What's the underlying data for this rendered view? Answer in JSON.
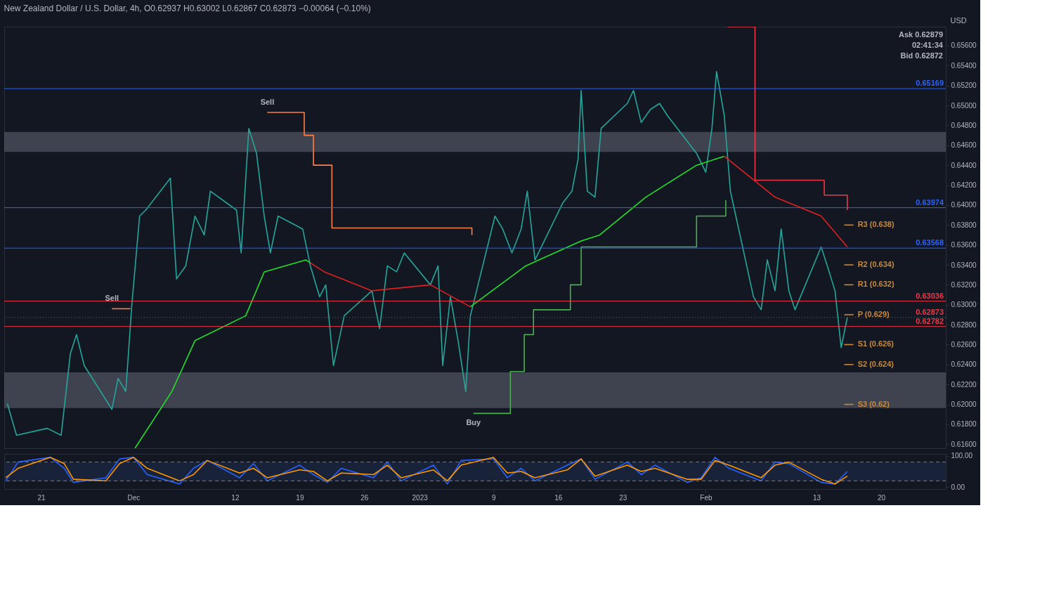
{
  "chart_data": [
    {
      "type": "line",
      "title": "New Zealand Dollar / U.S. Dollar, 4h, O0.62937 H0.63002 L0.62867 C0.62873 −0.00064 (−0.10%)",
      "ylabel": "USD",
      "xlim": [
        "2022-11-17",
        "2023-02-27"
      ],
      "ylim": [
        0.6156,
        0.6579
      ],
      "yticks": [
        {
          "value": 0.616,
          "label": "0.61600"
        },
        {
          "value": 0.618,
          "label": "0.61800"
        },
        {
          "value": 0.62,
          "label": "0.62000"
        },
        {
          "value": 0.622,
          "label": "0.62200"
        },
        {
          "value": 0.624,
          "label": "0.62400"
        },
        {
          "value": 0.626,
          "label": "0.62600"
        },
        {
          "value": 0.628,
          "label": "0.62800"
        },
        {
          "value": 0.63,
          "label": "0.63000"
        },
        {
          "value": 0.632,
          "label": "0.63200"
        },
        {
          "value": 0.634,
          "label": "0.63400"
        },
        {
          "value": 0.636,
          "label": "0.63600"
        },
        {
          "value": 0.638,
          "label": "0.63800"
        },
        {
          "value": 0.64,
          "label": "0.64000"
        },
        {
          "value": 0.642,
          "label": "0.64200"
        },
        {
          "value": 0.644,
          "label": "0.64400"
        },
        {
          "value": 0.646,
          "label": "0.64600"
        },
        {
          "value": 0.648,
          "label": "0.64800"
        },
        {
          "value": 0.65,
          "label": "0.65000"
        },
        {
          "value": 0.652,
          "label": "0.65200"
        },
        {
          "value": 0.654,
          "label": "0.65400"
        },
        {
          "value": 0.656,
          "label": "0.65600"
        }
      ],
      "tick_labels": "y",
      "grid": false,
      "bands": [
        {
          "axis": "y",
          "from": 0.64533,
          "to": 0.64734,
          "color": "#5d6170"
        },
        {
          "axis": "y",
          "from": 0.61963,
          "to": 0.62322,
          "color": "#5d6170"
        }
      ],
      "series": [
        {
          "color": "#26a69a",
          "x": [
            "2022-11-17T08:00",
            "2022-11-18T08:00",
            "2022-11-21T16:00",
            "2022-11-23T04:00",
            "2022-11-24T04:00",
            "2022-11-24T20:00",
            "2022-11-25T16:00",
            "2022-11-28T16:00",
            "2022-11-29T08:00",
            "2022-11-30T04:00",
            "2022-11-30T20:00",
            "2022-12-01T16:00",
            "2022-12-02T08:00",
            "2022-12-05T00:00",
            "2022-12-05T16:00",
            "2022-12-06T16:00",
            "2022-12-07T16:00",
            "2022-12-08T16:00",
            "2022-12-09T08:00",
            "2022-12-12T04:00",
            "2022-12-12T16:00",
            "2022-12-13T12:00",
            "2022-12-14T08:00",
            "2022-12-15T04:00",
            "2022-12-15T20:00",
            "2022-12-16T16:00",
            "2022-12-19T08:00",
            "2022-12-20T04:00",
            "2022-12-21T04:00",
            "2022-12-21T20:00",
            "2022-12-22T16:00",
            "2022-12-23T20:00",
            "2022-12-26T20:00",
            "2022-12-27T16:00",
            "2022-12-28T12:00",
            "2022-12-29T12:00",
            "2022-12-30T08:00",
            "2023-01-02T04:00",
            "2023-01-03T00:00",
            "2023-01-03T12:00",
            "2023-01-04T08:00",
            "2023-01-05T04:00",
            "2023-01-06T00:00",
            "2023-01-06T12:00",
            "2023-01-09T04:00",
            "2023-01-10T00:00",
            "2023-01-11T00:00",
            "2023-01-12T00:00",
            "2023-01-12T16:00",
            "2023-01-13T12:00",
            "2023-01-16T12:00",
            "2023-01-17T12:00",
            "2023-01-18T04:00",
            "2023-01-18T12:00",
            "2023-01-19T04:00",
            "2023-01-20T00:00",
            "2023-01-20T16:00",
            "2023-01-23T12:00",
            "2023-01-24T04:00",
            "2023-01-25T00:00",
            "2023-01-26T00:00",
            "2023-01-27T00:00",
            "2023-01-27T20:00",
            "2023-01-31T00:00",
            "2023-02-01T00:00",
            "2023-02-01T16:00",
            "2023-02-02T04:00",
            "2023-02-03T00:00",
            "2023-02-03T16:00",
            "2023-02-06T04:00",
            "2023-02-07T00:00",
            "2023-02-07T16:00",
            "2023-02-08T12:00",
            "2023-02-09T04:00",
            "2023-02-10T00:00",
            "2023-02-10T16:00",
            "2023-02-13T12:00",
            "2023-02-14T04:00",
            "2023-02-15T00:00",
            "2023-02-15T16:00",
            "2023-02-16T08:00"
          ],
          "values": [
            0.6201,
            0.6169,
            0.6176,
            0.6169,
            0.6251,
            0.627,
            0.6239,
            0.6195,
            0.6226,
            0.6213,
            0.6301,
            0.6389,
            0.6395,
            0.6427,
            0.6326,
            0.6339,
            0.6389,
            0.637,
            0.6414,
            0.6395,
            0.6352,
            0.6477,
            0.6452,
            0.6389,
            0.6352,
            0.6389,
            0.6376,
            0.6339,
            0.6308,
            0.632,
            0.6239,
            0.6289,
            0.6314,
            0.6276,
            0.6339,
            0.6333,
            0.6352,
            0.632,
            0.6339,
            0.6239,
            0.6308,
            0.6264,
            0.6213,
            0.6289,
            0.6389,
            0.6376,
            0.6352,
            0.6376,
            0.6414,
            0.6345,
            0.6402,
            0.6414,
            0.6446,
            0.6515,
            0.6414,
            0.6408,
            0.6477,
            0.6502,
            0.6515,
            0.6483,
            0.6496,
            0.6502,
            0.649,
            0.6452,
            0.6433,
            0.6477,
            0.6534,
            0.649,
            0.6414,
            0.6308,
            0.6295,
            0.6345,
            0.6314,
            0.6376,
            0.6314,
            0.6295,
            0.6358,
            0.6339,
            0.6314,
            0.6257,
            0.62873
          ]
        },
        {
          "color": "#22e02a",
          "x": [
            "2022-12-01T04:00",
            "2022-12-05T04:00",
            "2022-12-07T16:00",
            "2022-12-13T04:00",
            "2022-12-15T04:00",
            "2022-12-19T16:00",
            "2022-12-20T04:00"
          ],
          "values": [
            0.6156,
            0.6213,
            0.6264,
            0.6289,
            0.6333,
            0.6345,
            0.6342
          ]
        },
        {
          "color": "#e02020",
          "x": [
            "2022-12-20T04:00",
            "2022-12-21T16:00",
            "2022-12-26T20:00",
            "2023-01-02T04:00",
            "2023-01-06T12:00"
          ],
          "values": [
            0.6342,
            0.6333,
            0.6314,
            0.632,
            0.6298
          ]
        },
        {
          "color": "#22e02a",
          "x": [
            "2023-01-06T12:00",
            "2023-01-12T12:00",
            "2023-01-18T12:00",
            "2023-01-20T12:00",
            "2023-01-25T12:00",
            "2023-01-31T00:00",
            "2023-02-03T00:00"
          ],
          "values": [
            0.6298,
            0.6339,
            0.6364,
            0.637,
            0.6408,
            0.644,
            0.6449
          ]
        },
        {
          "color": "#e02020",
          "x": [
            "2023-02-03T00:00",
            "2023-02-08T12:00",
            "2023-02-13T12:00",
            "2023-02-16T08:00"
          ],
          "values": [
            0.6449,
            0.6408,
            0.6389,
            0.6358
          ]
        },
        {
          "type": "step",
          "color": "#ff7f45",
          "x": [
            "2022-11-28T16:00",
            "2022-11-30T16:00"
          ],
          "values": [
            0.6296,
            0.6296
          ]
        },
        {
          "type": "step",
          "color": "#ff7f45",
          "x": [
            "2022-12-15T12:00",
            "2022-12-19T12:00",
            "2022-12-20T12:00",
            "2022-12-22T12:00",
            "2023-01-06T16:00"
          ],
          "values": [
            0.6493,
            0.647,
            0.644,
            0.6377,
            0.637
          ]
        },
        {
          "type": "step",
          "color": "#4caf50",
          "x": [
            "2023-01-06T20:00",
            "2023-01-10T20:00",
            "2023-01-12T08:00",
            "2023-01-13T08:00",
            "2023-01-17T08:00",
            "2023-01-18T12:00",
            "2023-01-31T00:00",
            "2023-02-03T04:00"
          ],
          "values": [
            0.6191,
            0.6233,
            0.627,
            0.6295,
            0.632,
            0.6358,
            0.6389,
            0.6405
          ]
        },
        {
          "type": "step",
          "color": "#f23645",
          "x": [
            "2023-02-03T08:00",
            "2023-02-06T08:00",
            "2023-02-13T20:00",
            "2023-02-16T08:00"
          ],
          "values": [
            0.6579,
            0.6425,
            0.641,
            0.6395
          ]
        },
        {
          "name": "R3 (0.638)",
          "color": "#c8883a",
          "x": [
            "2023-02-16T00:00",
            "2023-02-17T00:00"
          ],
          "values": [
            0.638,
            0.638
          ]
        },
        {
          "name": "R2 (0.634)",
          "color": "#c8883a",
          "x": [
            "2023-02-16T00:00",
            "2023-02-17T00:00"
          ],
          "values": [
            0.634,
            0.634
          ]
        },
        {
          "name": "R1 (0.632)",
          "color": "#c8883a",
          "x": [
            "2023-02-16T00:00",
            "2023-02-17T00:00"
          ],
          "values": [
            0.632,
            0.632
          ]
        },
        {
          "name": "P (0.629)",
          "color": "#c8883a",
          "x": [
            "2023-02-16T00:00",
            "2023-02-17T00:00"
          ],
          "values": [
            0.629,
            0.629
          ]
        },
        {
          "name": "S1 (0.626)",
          "color": "#c8883a",
          "x": [
            "2023-02-16T00:00",
            "2023-02-17T00:00"
          ],
          "values": [
            0.626,
            0.626
          ]
        },
        {
          "name": "S2 (0.624)",
          "color": "#c8883a",
          "x": [
            "2023-02-16T00:00",
            "2023-02-17T00:00"
          ],
          "values": [
            0.624,
            0.624
          ]
        },
        {
          "name": "S3 (0.62)",
          "color": "#c8883a",
          "x": [
            "2023-02-16T00:00",
            "2023-02-17T00:00"
          ],
          "values": [
            0.62,
            0.62
          ]
        }
      ],
      "ref_lines": [
        {
          "axis": "y",
          "value": 0.65169,
          "label": "0.65169",
          "color": "#2962ff"
        },
        {
          "axis": "y",
          "value": 0.63974,
          "label": "0.63974",
          "color": "#2962ff"
        },
        {
          "axis": "y",
          "value": 0.63568,
          "label": "0.63568",
          "color": "#2962ff"
        },
        {
          "axis": "y",
          "value": 0.63036,
          "label": "0.63036",
          "color": "#f23645"
        },
        {
          "axis": "y",
          "value": 0.62873,
          "label": "0.62873",
          "color": "#f23645",
          "line_style": "dotted"
        },
        {
          "axis": "y",
          "value": 0.62782,
          "label": "0.62782",
          "color": "#f23645"
        }
      ],
      "annotations": [
        {
          "text": "Sell",
          "x": "2022-11-28T16:00",
          "y": 0.6296
        },
        {
          "text": "Sell",
          "x": "2022-12-15T12:00",
          "y": 0.6493
        },
        {
          "text": "Buy",
          "x": "2023-01-06T20:00",
          "y": 0.6191
        },
        "Ask 0.62879",
        "02:41:34",
        "Bid 0.62872"
      ]
    },
    {
      "type": "line",
      "xlim": [
        "2022-11-17",
        "2023-02-27"
      ],
      "ylim": [
        -6,
        106
      ],
      "xticks": [
        {
          "value": "2022-11-21",
          "label": "21"
        },
        {
          "value": "2022-12-01",
          "label": "Dec"
        },
        {
          "value": "2022-12-12",
          "label": "12"
        },
        {
          "value": "2022-12-19",
          "label": "19"
        },
        {
          "value": "2022-12-26",
          "label": "26"
        },
        {
          "value": "2023-01-01",
          "label": "2023"
        },
        {
          "value": "2023-01-09",
          "label": "9"
        },
        {
          "value": "2023-01-16",
          "label": "16"
        },
        {
          "value": "2023-01-23",
          "label": "23"
        },
        {
          "value": "2023-02-01",
          "label": "Feb"
        },
        {
          "value": "2023-02-13",
          "label": "13"
        },
        {
          "value": "2023-02-20",
          "label": "20"
        }
      ],
      "yticks": [
        {
          "value": 0,
          "label": "0.00"
        },
        {
          "value": 100,
          "label": "100.00"
        }
      ],
      "grid": false,
      "x": [
        "2022-11-17T04:00",
        "2022-11-18T12:00",
        "2022-11-22T00:00",
        "2022-11-23T12:00",
        "2022-11-24T12:00",
        "2022-11-28T00:00",
        "2022-11-29T12:00",
        "2022-12-01T00:00",
        "2022-12-02T12:00",
        "2022-12-06T00:00",
        "2022-12-07T12:00",
        "2022-12-09T00:00",
        "2022-12-12T12:00",
        "2022-12-14T00:00",
        "2022-12-15T12:00",
        "2022-12-19T00:00",
        "2022-12-20T12:00",
        "2022-12-22T00:00",
        "2022-12-23T12:00",
        "2022-12-27T00:00",
        "2022-12-28T12:00",
        "2022-12-30T00:00",
        "2023-01-02T12:00",
        "2023-01-04T00:00",
        "2023-01-05T12:00",
        "2023-01-09T00:00",
        "2023-01-10T12:00",
        "2023-01-12T00:00",
        "2023-01-13T12:00",
        "2023-01-17T00:00",
        "2023-01-18T12:00",
        "2023-01-20T00:00",
        "2023-01-23T12:00",
        "2023-01-25T00:00",
        "2023-01-26T12:00",
        "2023-01-30T00:00",
        "2023-01-31T12:00",
        "2023-02-02T00:00",
        "2023-02-03T12:00",
        "2023-02-07T00:00",
        "2023-02-08T12:00",
        "2023-02-10T00:00",
        "2023-02-13T12:00",
        "2023-02-15T00:00",
        "2023-02-16T08:00"
      ],
      "bands": [
        {
          "axis": "y",
          "from": 20,
          "to": 80,
          "color": "#1c2a48"
        }
      ],
      "ref_lines": [
        {
          "axis": "y",
          "value": 80,
          "color": "#787b86",
          "line_style": "dashed"
        },
        {
          "axis": "y",
          "value": 20,
          "color": "#787b86",
          "line_style": "dashed"
        }
      ],
      "series": [
        {
          "color": "#2962ff",
          "values": [
            20,
            80,
            95,
            60,
            15,
            30,
            90,
            95,
            40,
            10,
            60,
            85,
            30,
            75,
            20,
            70,
            40,
            15,
            60,
            30,
            80,
            20,
            70,
            10,
            85,
            90,
            30,
            60,
            20,
            70,
            90,
            25,
            80,
            40,
            70,
            15,
            30,
            95,
            60,
            20,
            80,
            75,
            15,
            10,
            50
          ]
        },
        {
          "color": "#ff9800",
          "values": [
            30,
            60,
            95,
            75,
            25,
            20,
            75,
            95,
            60,
            20,
            40,
            85,
            45,
            60,
            30,
            55,
            50,
            20,
            45,
            40,
            70,
            30,
            55,
            20,
            70,
            95,
            45,
            50,
            30,
            55,
            90,
            35,
            70,
            50,
            60,
            25,
            25,
            85,
            70,
            30,
            70,
            80,
            25,
            10,
            35
          ]
        }
      ]
    }
  ]
}
